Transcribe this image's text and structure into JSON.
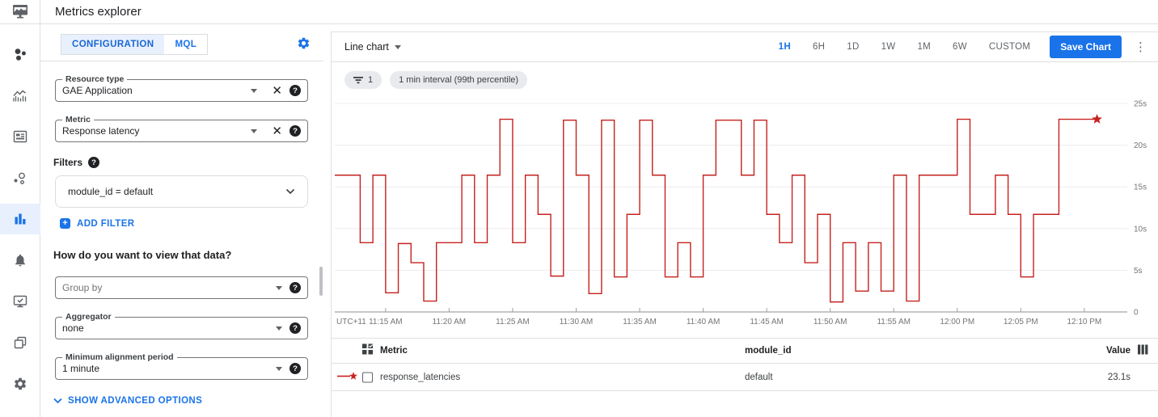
{
  "colors": {
    "accent": "#1a73e8",
    "active_tab_bg": "#e8f0fe",
    "series_red": "#c5221f"
  },
  "header": {
    "title": "Metrics explorer"
  },
  "sidebar": {
    "items": [
      "overview",
      "dashboards",
      "dashboard-list",
      "services",
      "metrics-explorer",
      "alerting",
      "uptime-checks",
      "groups",
      "settings"
    ],
    "active": "metrics-explorer"
  },
  "config_panel": {
    "tabs": [
      {
        "label": "CONFIGURATION"
      },
      {
        "label": "MQL"
      }
    ],
    "active_tab": "CONFIGURATION",
    "resource_type": {
      "label": "Resource type",
      "value": "GAE Application"
    },
    "metric": {
      "label": "Metric",
      "value": "Response latency"
    },
    "filters_label": "Filters",
    "filter_value": "module_id = default",
    "add_filter_label": "ADD FILTER",
    "view_heading": "How do you want to view that data?",
    "group_by": {
      "placeholder": "Group by"
    },
    "aggregator": {
      "label": "Aggregator",
      "value": "none"
    },
    "min_alignment": {
      "label": "Minimum alignment period",
      "value": "1 minute"
    },
    "show_advanced_label": "SHOW ADVANCED OPTIONS"
  },
  "chart_toolbar": {
    "chart_type": "Line chart",
    "time_ranges": [
      "1H",
      "6H",
      "1D",
      "1W",
      "1M",
      "6W",
      "CUSTOM"
    ],
    "active_range": "1H",
    "save_button": "Save Chart"
  },
  "chips": {
    "filter_count": "1",
    "interval": "1 min interval (99th percentile)"
  },
  "chart_data": {
    "type": "line",
    "style": "step",
    "title": "",
    "xlabel": "",
    "ylabel": "",
    "unit": "s",
    "ylim": [
      0,
      25
    ],
    "y_grid": [
      0,
      5,
      10,
      15,
      20,
      25
    ],
    "y_tick_labels": [
      "0",
      "5s",
      "10s",
      "15s",
      "20s",
      "25s"
    ],
    "x_axis_prefix": "UTC+11",
    "x_start_time": "11:11 AM",
    "tick_start_index": 4,
    "tick_interval_minutes": 5,
    "total_minutes": 62,
    "x_ticks": [
      "11:15 AM",
      "11:20 AM",
      "11:25 AM",
      "11:30 AM",
      "11:35 AM",
      "11:40 AM",
      "11:45 AM",
      "11:50 AM",
      "11:55 AM",
      "12:00 PM",
      "12:05 PM",
      "12:10 PM"
    ],
    "series": [
      {
        "name": "response_latencies",
        "color": "#c5221f",
        "end_marker": "star",
        "values": [
          16.4,
          16.4,
          8.3,
          16.4,
          2.3,
          8.2,
          5.9,
          1.3,
          8.3,
          8.3,
          16.4,
          8.3,
          16.4,
          23.1,
          8.3,
          16.4,
          11.7,
          4.3,
          23,
          16.4,
          2.2,
          23,
          4.2,
          11.7,
          23,
          16.4,
          4.2,
          8.3,
          4.2,
          16.4,
          23,
          23,
          16.4,
          23,
          11.7,
          8.3,
          16.4,
          5.9,
          11.7,
          1.2,
          8.3,
          2.5,
          8.3,
          2.5,
          16.4,
          1.3,
          16.4,
          16.4,
          16.4,
          23.1,
          11.7,
          11.7,
          16.4,
          11.7,
          4.2,
          11.7,
          11.7,
          23.1,
          23.1,
          23.1
        ]
      }
    ],
    "legend_position": "table-below"
  },
  "table": {
    "columns": [
      "Metric",
      "module_id",
      "Value"
    ],
    "rows": [
      {
        "metric": "response_latencies",
        "module_id": "default",
        "value": "23.1s"
      }
    ]
  }
}
